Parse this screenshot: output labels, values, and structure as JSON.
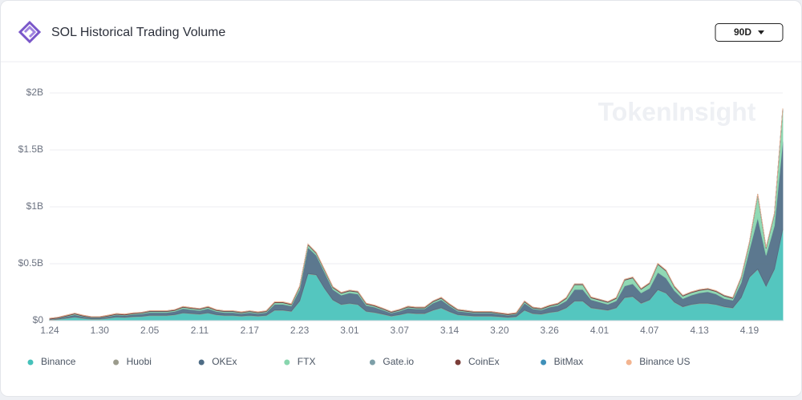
{
  "header": {
    "title": "SOL Historical Trading Volume",
    "range": "90D"
  },
  "chart_data": {
    "type": "stacked-area",
    "watermark": "TokenInsight",
    "categories": [
      "1.24",
      null,
      null,
      null,
      null,
      null,
      "1.30",
      null,
      null,
      null,
      null,
      null,
      "2.05",
      null,
      null,
      null,
      null,
      null,
      "2.11",
      null,
      null,
      null,
      null,
      null,
      "2.17",
      null,
      null,
      null,
      null,
      null,
      "2.23",
      null,
      null,
      null,
      null,
      null,
      "3.01",
      null,
      null,
      null,
      null,
      null,
      "3.07",
      null,
      null,
      null,
      null,
      null,
      "3.14",
      null,
      null,
      null,
      null,
      null,
      "3.20",
      null,
      null,
      null,
      null,
      null,
      "3.26",
      null,
      null,
      null,
      null,
      null,
      "4.01",
      null,
      null,
      null,
      null,
      null,
      "4.07",
      null,
      null,
      null,
      null,
      null,
      "4.13",
      null,
      null,
      null,
      null,
      null,
      "4.19",
      null,
      null,
      null,
      null
    ],
    "ylim": [
      0,
      2
    ],
    "yticks": [
      {
        "value": 0,
        "label": "$0"
      },
      {
        "value": 0.5,
        "label": "$0.5B"
      },
      {
        "value": 1,
        "label": "$1B"
      },
      {
        "value": 1.5,
        "label": "$1.5B"
      },
      {
        "value": 2,
        "label": "$2B"
      }
    ],
    "grid": true,
    "series": [
      {
        "name": "Binance",
        "color": "#45c1ba",
        "values": [
          0.005,
          0.01,
          0.02,
          0.03,
          0.02,
          0.012,
          0.012,
          0.02,
          0.03,
          0.027,
          0.033,
          0.035,
          0.044,
          0.044,
          0.044,
          0.05,
          0.066,
          0.06,
          0.055,
          0.066,
          0.05,
          0.044,
          0.044,
          0.038,
          0.044,
          0.038,
          0.044,
          0.09,
          0.09,
          0.08,
          0.17,
          0.41,
          0.4,
          0.28,
          0.18,
          0.14,
          0.15,
          0.14,
          0.08,
          0.07,
          0.055,
          0.038,
          0.05,
          0.066,
          0.06,
          0.06,
          0.09,
          0.11,
          0.077,
          0.05,
          0.044,
          0.038,
          0.038,
          0.038,
          0.033,
          0.027,
          0.033,
          0.09,
          0.06,
          0.055,
          0.07,
          0.08,
          0.11,
          0.17,
          0.17,
          0.11,
          0.1,
          0.09,
          0.11,
          0.2,
          0.21,
          0.15,
          0.18,
          0.27,
          0.24,
          0.16,
          0.12,
          0.14,
          0.15,
          0.15,
          0.14,
          0.12,
          0.11,
          0.2,
          0.38,
          0.45,
          0.3,
          0.45,
          0.8
        ]
      },
      {
        "name": "Huobi",
        "color": "#9b9b8c",
        "values": [
          0.004,
          0.004,
          0.004,
          0.004,
          0.004,
          0.004,
          0.004,
          0.004,
          0.004,
          0.004,
          0.004,
          0.004,
          0.004,
          0.004,
          0.004,
          0.004,
          0.004,
          0.004,
          0.004,
          0.004,
          0.004,
          0.004,
          0.004,
          0.004,
          0.004,
          0.004,
          0.004,
          0.004,
          0.004,
          0.004,
          0.004,
          0.004,
          0.004,
          0.004,
          0.004,
          0.004,
          0.004,
          0.004,
          0.004,
          0.004,
          0.004,
          0.004,
          0.004,
          0.004,
          0.004,
          0.004,
          0.004,
          0.004,
          0.004,
          0.004,
          0.004,
          0.004,
          0.004,
          0.004,
          0.004,
          0.004,
          0.004,
          0.004,
          0.004,
          0.004,
          0.004,
          0.004,
          0.004,
          0.004,
          0.004,
          0.004,
          0.004,
          0.004,
          0.004,
          0.004,
          0.004,
          0.004,
          0.004,
          0.004,
          0.004,
          0.004,
          0.004,
          0.004,
          0.004,
          0.004,
          0.004,
          0.004,
          0.004,
          0.004,
          0.004,
          0.004,
          0.004,
          0.004,
          0.004
        ]
      },
      {
        "name": "OKEx",
        "color": "#4e6c85",
        "values": [
          0.003,
          0.006,
          0.012,
          0.018,
          0.012,
          0.008,
          0.008,
          0.012,
          0.016,
          0.015,
          0.018,
          0.02,
          0.024,
          0.024,
          0.024,
          0.027,
          0.036,
          0.033,
          0.03,
          0.036,
          0.027,
          0.024,
          0.024,
          0.021,
          0.024,
          0.021,
          0.024,
          0.05,
          0.05,
          0.045,
          0.1,
          0.23,
          0.17,
          0.14,
          0.09,
          0.08,
          0.09,
          0.09,
          0.05,
          0.045,
          0.035,
          0.025,
          0.03,
          0.04,
          0.04,
          0.04,
          0.06,
          0.07,
          0.05,
          0.03,
          0.028,
          0.025,
          0.025,
          0.025,
          0.02,
          0.017,
          0.02,
          0.06,
          0.04,
          0.035,
          0.045,
          0.05,
          0.06,
          0.1,
          0.1,
          0.07,
          0.06,
          0.05,
          0.06,
          0.1,
          0.11,
          0.09,
          0.1,
          0.15,
          0.13,
          0.1,
          0.07,
          0.08,
          0.09,
          0.1,
          0.09,
          0.07,
          0.065,
          0.13,
          0.24,
          0.45,
          0.27,
          0.38,
          0.77
        ]
      },
      {
        "name": "FTX",
        "color": "#88d6ae",
        "values": [
          0,
          0.001,
          0.003,
          0.005,
          0.003,
          0.002,
          0.002,
          0.003,
          0.004,
          0.003,
          0.004,
          0.005,
          0.006,
          0.006,
          0.006,
          0.007,
          0.01,
          0.009,
          0.008,
          0.01,
          0.007,
          0.006,
          0.006,
          0.005,
          0.006,
          0.005,
          0.006,
          0.012,
          0.012,
          0.01,
          0.02,
          0.02,
          0.015,
          0.015,
          0.015,
          0.015,
          0.015,
          0.015,
          0.01,
          0.008,
          0.006,
          0.004,
          0.006,
          0.008,
          0.006,
          0.006,
          0.01,
          0.012,
          0.008,
          0.006,
          0.005,
          0.004,
          0.004,
          0.004,
          0.004,
          0.003,
          0.004,
          0.01,
          0.006,
          0.006,
          0.008,
          0.01,
          0.02,
          0.04,
          0.04,
          0.015,
          0.015,
          0.015,
          0.02,
          0.05,
          0.05,
          0.03,
          0.04,
          0.07,
          0.06,
          0.03,
          0.02,
          0.02,
          0.02,
          0.02,
          0.02,
          0.02,
          0.015,
          0.04,
          0.06,
          0.2,
          0.06,
          0.1,
          0.28
        ]
      },
      {
        "name": "Gate.io",
        "color": "#7d9fa8",
        "values": [
          0.002,
          0.002,
          0.002,
          0.002,
          0.002,
          0.002,
          0.002,
          0.002,
          0.002,
          0.002,
          0.002,
          0.002,
          0.002,
          0.002,
          0.002,
          0.002,
          0.002,
          0.002,
          0.002,
          0.002,
          0.002,
          0.002,
          0.002,
          0.002,
          0.002,
          0.002,
          0.002,
          0.002,
          0.002,
          0.002,
          0.002,
          0.002,
          0.002,
          0.002,
          0.002,
          0.002,
          0.002,
          0.002,
          0.002,
          0.002,
          0.002,
          0.002,
          0.002,
          0.002,
          0.002,
          0.002,
          0.002,
          0.002,
          0.002,
          0.002,
          0.002,
          0.002,
          0.002,
          0.002,
          0.002,
          0.002,
          0.002,
          0.002,
          0.002,
          0.002,
          0.002,
          0.002,
          0.002,
          0.002,
          0.002,
          0.002,
          0.002,
          0.002,
          0.002,
          0.002,
          0.002,
          0.002,
          0.002,
          0.002,
          0.002,
          0.002,
          0.002,
          0.002,
          0.002,
          0.002,
          0.002,
          0.002,
          0.002,
          0.002,
          0.002,
          0.002,
          0.002,
          0.002,
          0.002
        ]
      },
      {
        "name": "CoinEx",
        "color": "#7b3e39",
        "values": [
          0.006,
          0.006,
          0.006,
          0.006,
          0.006,
          0.006,
          0.006,
          0.006,
          0.006,
          0.006,
          0.006,
          0.006,
          0.006,
          0.006,
          0.006,
          0.006,
          0.006,
          0.006,
          0.006,
          0.006,
          0.006,
          0.006,
          0.006,
          0.006,
          0.006,
          0.006,
          0.006,
          0.006,
          0.006,
          0.006,
          0.006,
          0.006,
          0.006,
          0.006,
          0.006,
          0.006,
          0.006,
          0.006,
          0.006,
          0.006,
          0.006,
          0.006,
          0.006,
          0.006,
          0.006,
          0.006,
          0.006,
          0.006,
          0.006,
          0.006,
          0.006,
          0.006,
          0.006,
          0.006,
          0.006,
          0.006,
          0.006,
          0.006,
          0.006,
          0.006,
          0.006,
          0.006,
          0.006,
          0.006,
          0.006,
          0.006,
          0.006,
          0.006,
          0.006,
          0.006,
          0.006,
          0.006,
          0.006,
          0.006,
          0.006,
          0.006,
          0.006,
          0.006,
          0.006,
          0.006,
          0.006,
          0.006,
          0.006,
          0.006,
          0.006,
          0.006,
          0.006,
          0.006,
          0.006
        ]
      },
      {
        "name": "BitMax",
        "color": "#3f90b9",
        "values": [
          0.001,
          0.001,
          0.001,
          0.001,
          0.001,
          0.001,
          0.001,
          0.001,
          0.001,
          0.001,
          0.001,
          0.001,
          0.001,
          0.001,
          0.001,
          0.001,
          0.001,
          0.001,
          0.001,
          0.001,
          0.001,
          0.001,
          0.001,
          0.001,
          0.001,
          0.001,
          0.001,
          0.001,
          0.001,
          0.001,
          0.001,
          0.001,
          0.001,
          0.001,
          0.001,
          0.001,
          0.001,
          0.001,
          0.001,
          0.001,
          0.001,
          0.001,
          0.001,
          0.001,
          0.001,
          0.001,
          0.001,
          0.001,
          0.001,
          0.001,
          0.001,
          0.001,
          0.001,
          0.001,
          0.001,
          0.001,
          0.001,
          0.001,
          0.001,
          0.001,
          0.001,
          0.001,
          0.001,
          0.001,
          0.001,
          0.001,
          0.001,
          0.001,
          0.001,
          0.001,
          0.001,
          0.001,
          0.001,
          0.001,
          0.001,
          0.001,
          0.001,
          0.001,
          0.001,
          0.001,
          0.001,
          0.001,
          0.001,
          0.001,
          0.001,
          0.001,
          0.001,
          0.001,
          0.001
        ]
      },
      {
        "name": "Binance US",
        "color": "#f3b48f",
        "values": [
          0.001,
          0.001,
          0.001,
          0.001,
          0.001,
          0.001,
          0.001,
          0.001,
          0.001,
          0.001,
          0.001,
          0.001,
          0.001,
          0.001,
          0.001,
          0.001,
          0.001,
          0.001,
          0.001,
          0.001,
          0.001,
          0.001,
          0.001,
          0.001,
          0.001,
          0.001,
          0.001,
          0.001,
          0.001,
          0.001,
          0.001,
          0.001,
          0.001,
          0.001,
          0.001,
          0.001,
          0.001,
          0.001,
          0.001,
          0.001,
          0.001,
          0.001,
          0.001,
          0.001,
          0.001,
          0.001,
          0.001,
          0.001,
          0.001,
          0.001,
          0.001,
          0.001,
          0.001,
          0.001,
          0.001,
          0.001,
          0.001,
          0.001,
          0.001,
          0.001,
          0.001,
          0.001,
          0.001,
          0.001,
          0.001,
          0.001,
          0.001,
          0.001,
          0.001,
          0.001,
          0.001,
          0.001,
          0.001,
          0.001,
          0.001,
          0.001,
          0.001,
          0.001,
          0.001,
          0.001,
          0.001,
          0.001,
          0.001,
          0.001,
          0.001,
          0.001,
          0.001,
          0.001,
          0.001
        ]
      }
    ]
  }
}
